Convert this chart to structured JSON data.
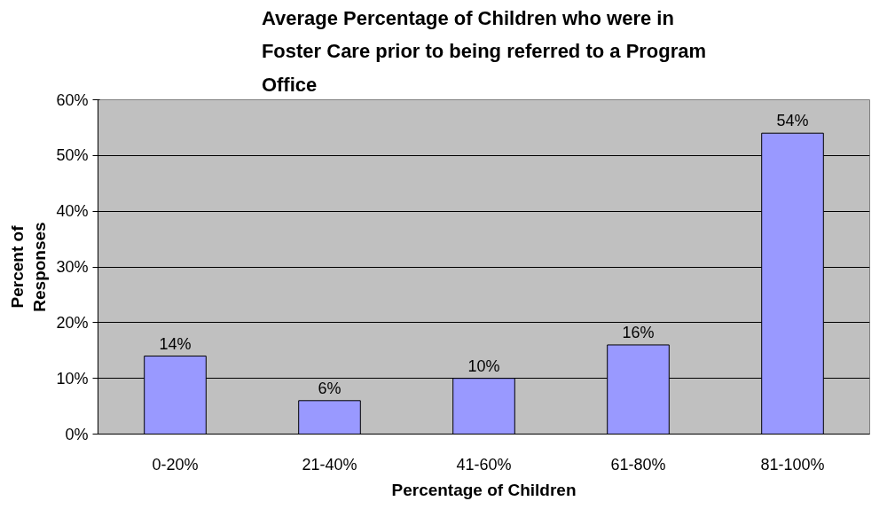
{
  "chart_data": {
    "type": "bar",
    "title": "Average Percentage of Children who were in Foster Care prior to being referred to a Program Office",
    "xlabel": "Percentage of Children",
    "ylabel": "Percent of Responses",
    "categories": [
      "0-20%",
      "21-40%",
      "41-60%",
      "61-80%",
      "81-100%"
    ],
    "values": [
      14,
      6,
      10,
      16,
      54
    ],
    "value_labels": [
      "14%",
      "6%",
      "10%",
      "16%",
      "54%"
    ],
    "color": "#9999ff",
    "ylim": [
      0,
      60
    ],
    "yticks": [
      {
        "value": 0,
        "label": "0%"
      },
      {
        "value": 10,
        "label": "10%"
      },
      {
        "value": 20,
        "label": "20%"
      },
      {
        "value": 30,
        "label": "30%"
      },
      {
        "value": 40,
        "label": "40%"
      },
      {
        "value": 50,
        "label": "50%"
      },
      {
        "value": 60,
        "label": "60%"
      }
    ],
    "grid": "y"
  }
}
